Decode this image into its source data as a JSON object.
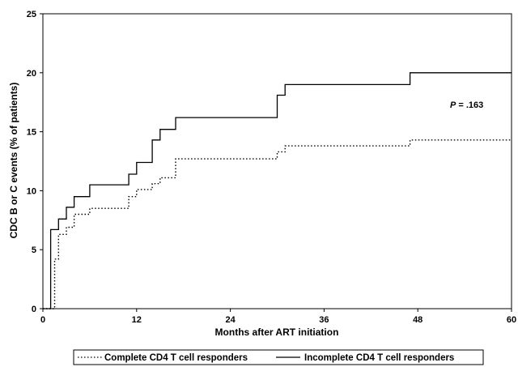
{
  "chart_data": {
    "type": "line",
    "step": true,
    "xlabel": "Months after ART initiation",
    "ylabel": "CDC B or C events (% of patients)",
    "xlim": [
      0,
      60
    ],
    "ylim": [
      0,
      25
    ],
    "xticks": [
      0,
      12,
      24,
      36,
      48,
      60
    ],
    "yticks": [
      0,
      5,
      10,
      15,
      20,
      25
    ],
    "grid": false,
    "legend_position": "bottom",
    "annotation": {
      "italic": "P",
      "text": " = .163"
    },
    "series": [
      {
        "name": "Complete CD4 T cell responders",
        "style": "dotted",
        "color": "#000000",
        "points": [
          [
            0,
            0
          ],
          [
            1.5,
            0
          ],
          [
            1.5,
            4.2
          ],
          [
            2,
            4.2
          ],
          [
            2,
            6.3
          ],
          [
            3,
            6.3
          ],
          [
            3,
            6.9
          ],
          [
            4,
            6.9
          ],
          [
            4,
            8.0
          ],
          [
            6,
            8.0
          ],
          [
            6,
            8.5
          ],
          [
            11,
            8.5
          ],
          [
            11,
            9.5
          ],
          [
            12,
            9.5
          ],
          [
            12,
            10.1
          ],
          [
            14,
            10.1
          ],
          [
            14,
            10.6
          ],
          [
            15,
            10.6
          ],
          [
            15,
            11.1
          ],
          [
            17,
            11.1
          ],
          [
            17,
            12.7
          ],
          [
            30,
            12.7
          ],
          [
            30,
            13.3
          ],
          [
            31,
            13.3
          ],
          [
            31,
            13.8
          ],
          [
            47,
            13.8
          ],
          [
            47,
            14.3
          ],
          [
            60,
            14.3
          ]
        ]
      },
      {
        "name": "Incomplete CD4 T cell responders",
        "style": "solid",
        "color": "#000000",
        "points": [
          [
            0,
            0
          ],
          [
            1,
            0
          ],
          [
            1,
            6.7
          ],
          [
            2,
            6.7
          ],
          [
            2,
            7.6
          ],
          [
            3,
            7.6
          ],
          [
            3,
            8.6
          ],
          [
            4,
            8.6
          ],
          [
            4,
            9.5
          ],
          [
            6,
            9.5
          ],
          [
            6,
            10.5
          ],
          [
            11,
            10.5
          ],
          [
            11,
            11.4
          ],
          [
            12,
            11.4
          ],
          [
            12,
            12.4
          ],
          [
            14,
            12.4
          ],
          [
            14,
            14.3
          ],
          [
            15,
            14.3
          ],
          [
            15,
            15.2
          ],
          [
            17,
            15.2
          ],
          [
            17,
            16.2
          ],
          [
            30,
            16.2
          ],
          [
            30,
            18.1
          ],
          [
            31,
            18.1
          ],
          [
            31,
            19.0
          ],
          [
            47,
            19.0
          ],
          [
            47,
            20.0
          ],
          [
            60,
            20.0
          ]
        ]
      }
    ]
  }
}
